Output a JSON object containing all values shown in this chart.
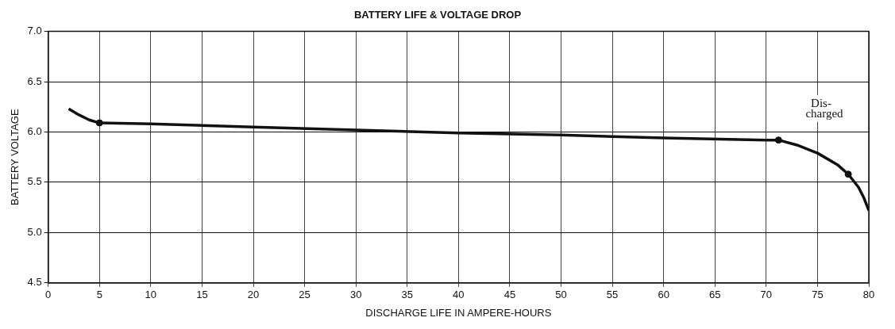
{
  "chart_data": {
    "type": "line",
    "title": "BATTERY LIFE & VOLTAGE DROP",
    "xlabel": "DISCHARGE LIFE IN AMPERE-HOURS",
    "ylabel": "BATTERY VOLTAGE",
    "xlim": [
      0,
      80
    ],
    "xticks": [
      0,
      5,
      10,
      15,
      20,
      25,
      30,
      35,
      40,
      45,
      50,
      55,
      60,
      65,
      70,
      75,
      80
    ],
    "ylim": [
      4.5,
      7.0
    ],
    "yticks": [
      {
        "value": 4.5,
        "label": "4.5"
      },
      {
        "value": 5.0,
        "label": "5.0"
      },
      {
        "value": 5.5,
        "label": "5.5"
      },
      {
        "value": 6.0,
        "label": "6.0"
      },
      {
        "value": 6.5,
        "label": "6.5"
      },
      {
        "value": 7.0,
        "label": "7.0"
      }
    ],
    "grid": true,
    "marker": "none",
    "series": [
      {
        "color": "#111111",
        "x": [
          2,
          3,
          4,
          5,
          10,
          20,
          30,
          40,
          50,
          60,
          70,
          71.2,
          73,
          75,
          77,
          78,
          79,
          79.5,
          80
        ],
        "values": [
          6.23,
          6.17,
          6.12,
          6.09,
          6.08,
          6.05,
          6.02,
          5.99,
          5.97,
          5.94,
          5.92,
          5.92,
          5.87,
          5.79,
          5.67,
          5.58,
          5.45,
          5.35,
          5.22
        ]
      },
      {
        "type": "scatter",
        "color": "#111111",
        "marker": "circle",
        "x": [
          5,
          71.2,
          78
        ],
        "values": [
          6.09,
          5.92,
          5.58
        ]
      }
    ],
    "annotations": [
      "Dis-\ncharged"
    ]
  }
}
